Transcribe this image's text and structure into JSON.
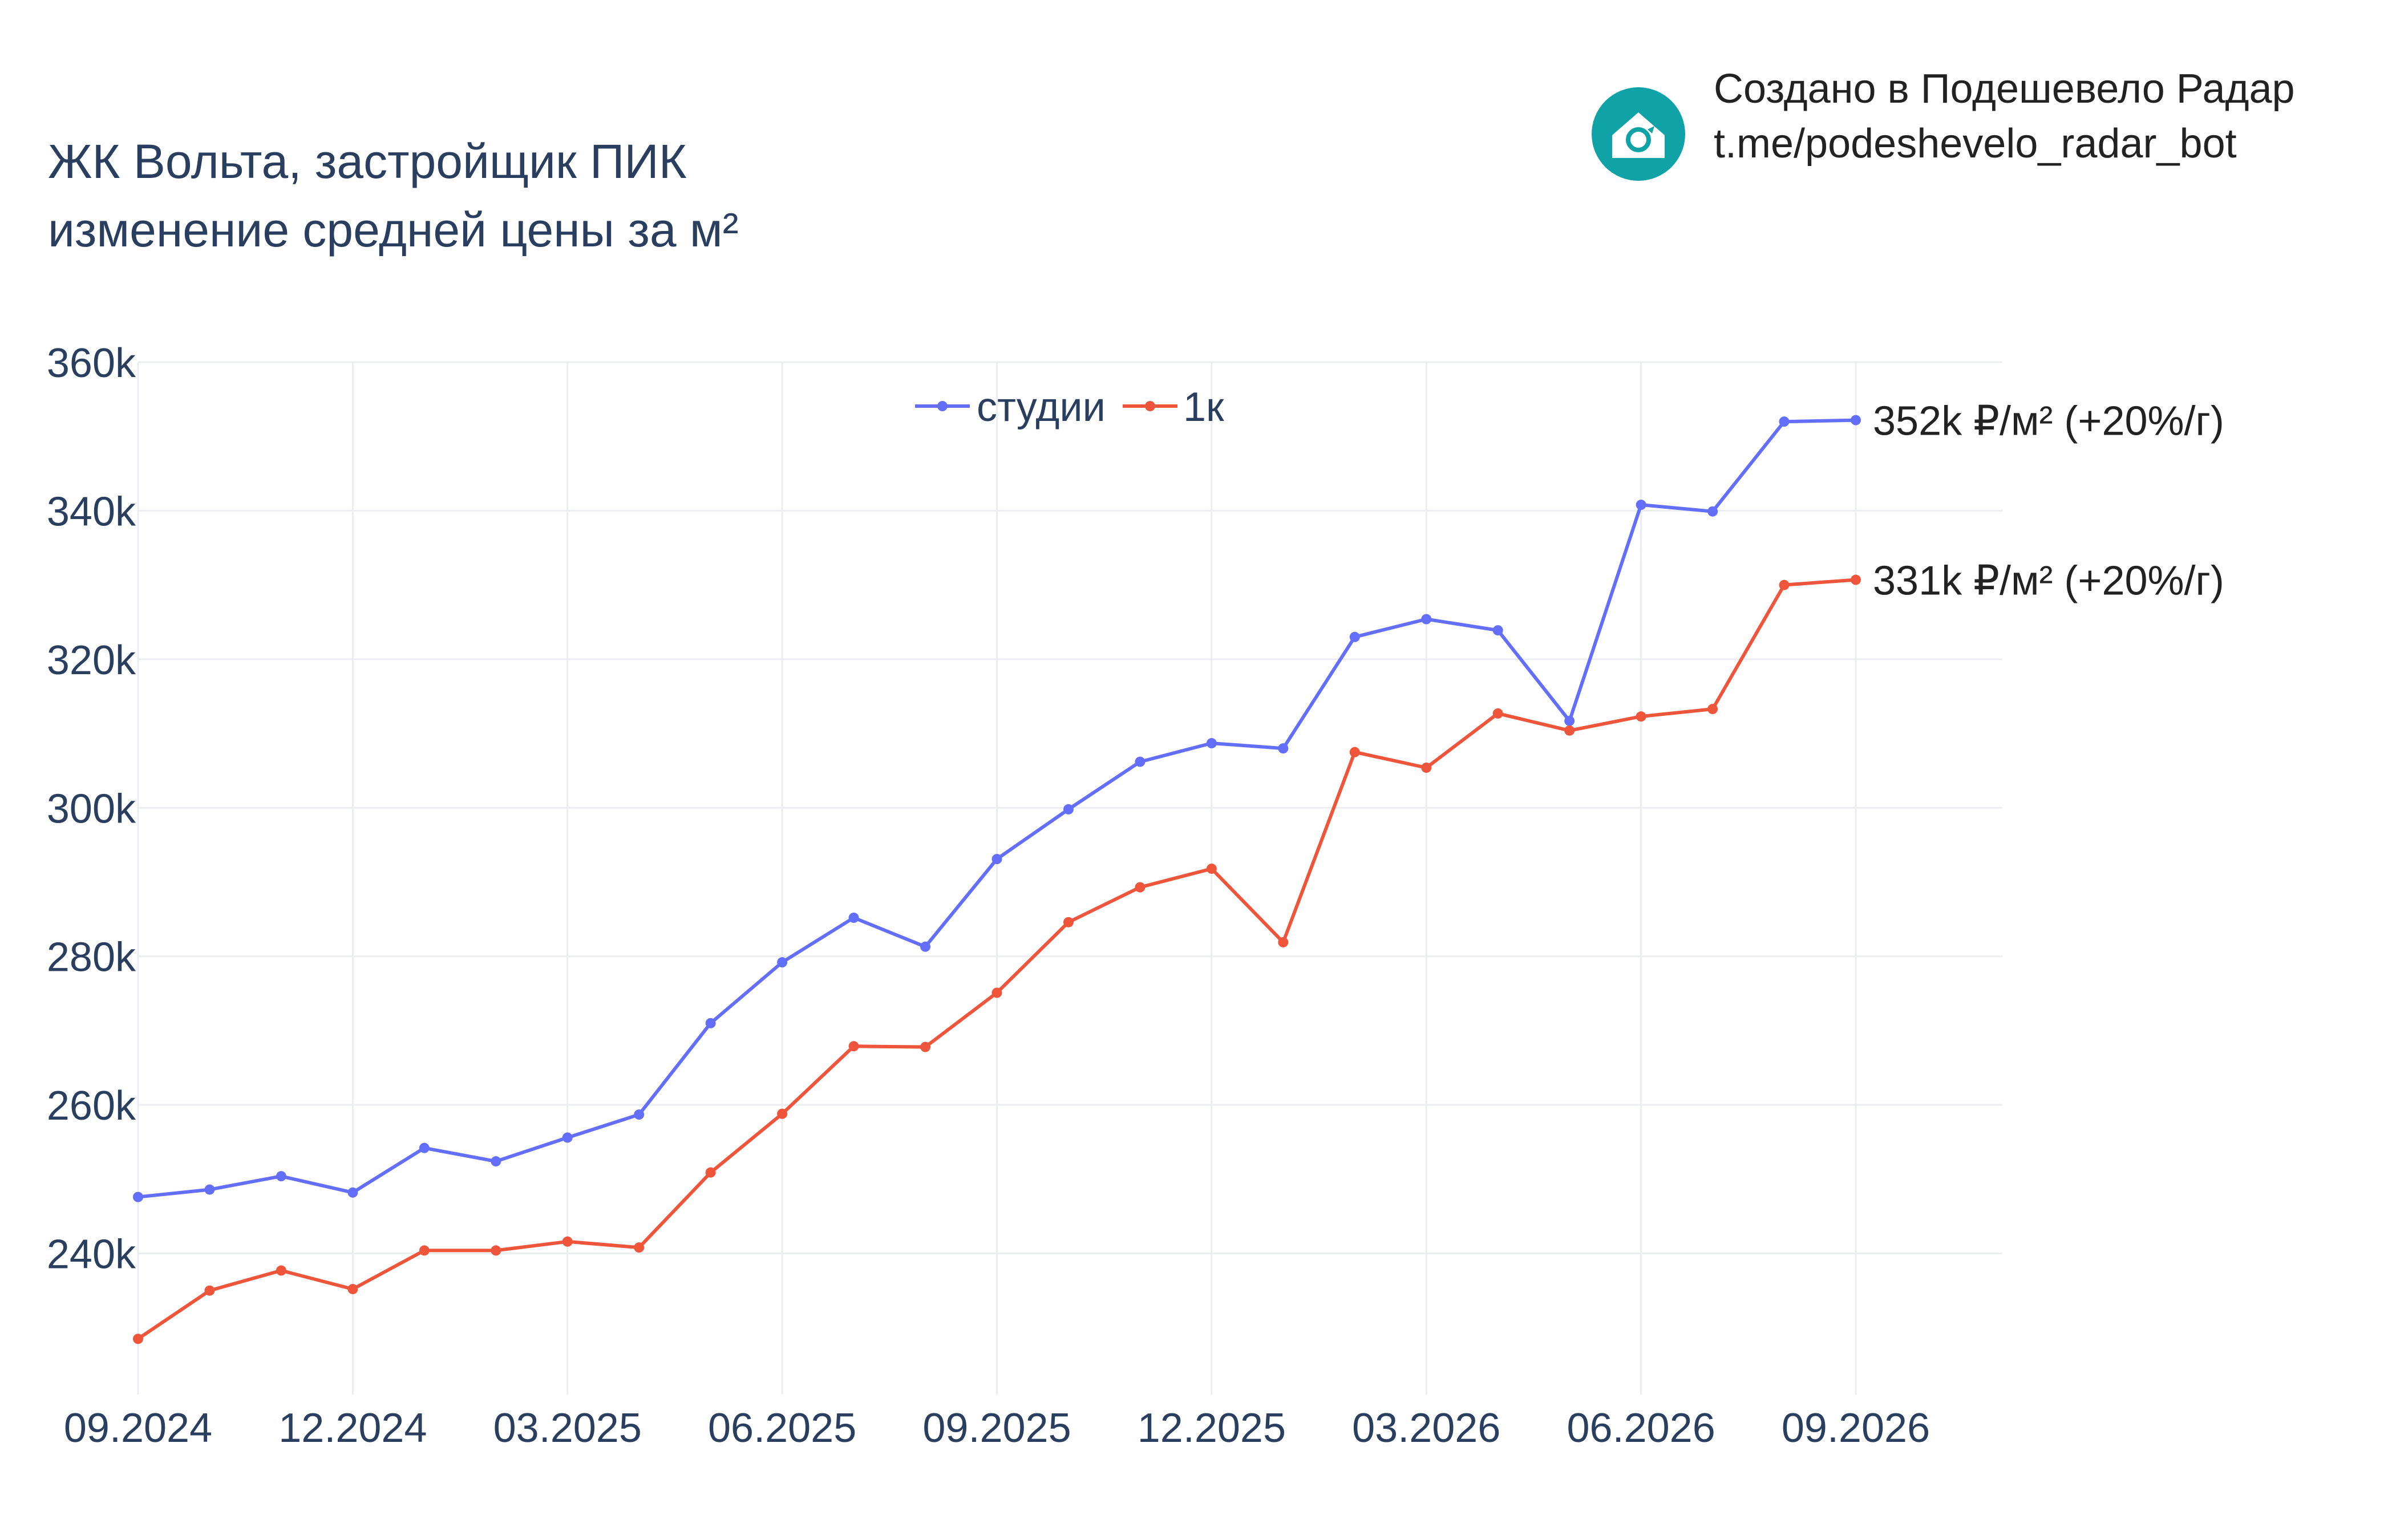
{
  "title_line1": "ЖК Вольта, застройщик ПИК",
  "title_line2": "изменение средней цены за м²",
  "branding": {
    "line1": "Создано в Подешевело Радар",
    "line2": "t.me/podeshevelo_radar_bot",
    "logo_icon": "house-refresh-icon",
    "logo_color": "#0fa3a8"
  },
  "chart_data": {
    "type": "line",
    "x": [
      "2024-09",
      "2024-10",
      "2024-11",
      "2024-12",
      "2025-01",
      "2025-02",
      "2025-03",
      "2025-04",
      "2025-05",
      "2025-06",
      "2025-07",
      "2025-08",
      "2025-09",
      "2025-10",
      "2025-11",
      "2025-12",
      "2026-01",
      "2026-02",
      "2026-03",
      "2026-04",
      "2026-05",
      "2026-06",
      "2026-07",
      "2026-08",
      "2026-09"
    ],
    "x_tick_labels": [
      "09.2024",
      "12.2024",
      "03.2025",
      "06.2025",
      "09.2025",
      "12.2025",
      "03.2026",
      "06.2026",
      "09.2026"
    ],
    "y_tick_labels": [
      "240k",
      "260k",
      "280k",
      "300k",
      "320k",
      "340k",
      "360k"
    ],
    "y_ticks": [
      240000,
      260000,
      280000,
      300000,
      320000,
      340000,
      360000
    ],
    "ylim": [
      221000,
      360000
    ],
    "grid": true,
    "legend_position": "top-center",
    "series": [
      {
        "name": "студии",
        "color": "#636efa",
        "values": [
          247600,
          248600,
          250400,
          248200,
          254200,
          252400,
          255600,
          258700,
          271000,
          279200,
          285200,
          281300,
          293100,
          299800,
          306200,
          308700,
          308000,
          323000,
          325400,
          323900,
          311700,
          340800,
          339900,
          352000,
          352200
        ],
        "end_label": "352k ₽/м² (+20%/г)"
      },
      {
        "name": "1к",
        "color": "#ef553b",
        "values": [
          228500,
          235000,
          237700,
          235200,
          240400,
          240400,
          241600,
          240800,
          250900,
          258800,
          267900,
          267800,
          275100,
          284600,
          289300,
          291800,
          281900,
          307500,
          305400,
          312700,
          310400,
          312300,
          313300,
          330000,
          330700
        ],
        "end_label": "331k ₽/м² (+20%/г)"
      }
    ]
  }
}
